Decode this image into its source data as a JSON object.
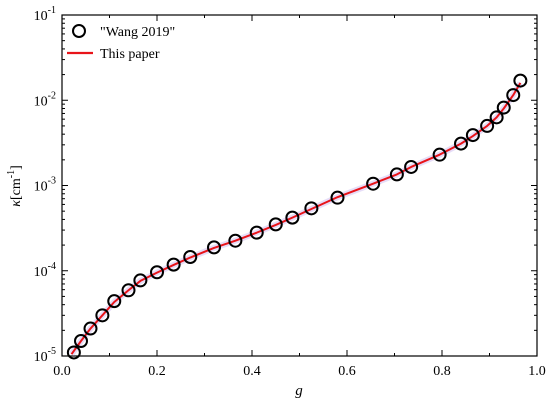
{
  "chart_data": {
    "type": "scatter",
    "xlabel": "g",
    "ylabel": {
      "kappa": "κ",
      "unit_open": "[cm",
      "unit_exp": "-1",
      "unit_close": "]"
    },
    "xlim": [
      0.0,
      1.0
    ],
    "ylim": [
      1e-05,
      0.1
    ],
    "yscale": "log",
    "grid": false,
    "legend_position": "top-left",
    "x_ticks": [
      {
        "value": 0.0,
        "label": "0.0"
      },
      {
        "value": 0.2,
        "label": "0.2"
      },
      {
        "value": 0.4,
        "label": "0.4"
      },
      {
        "value": 0.6,
        "label": "0.6"
      },
      {
        "value": 0.8,
        "label": "0.8"
      },
      {
        "value": 1.0,
        "label": "1.0"
      }
    ],
    "y_ticks": [
      {
        "value": 1e-05,
        "base": "10",
        "exp": "-5"
      },
      {
        "value": 0.0001,
        "base": "10",
        "exp": "-4"
      },
      {
        "value": 0.001,
        "base": "10",
        "exp": "-3"
      },
      {
        "value": 0.01,
        "base": "10",
        "exp": "-2"
      },
      {
        "value": 0.1,
        "base": "10",
        "exp": "-1"
      }
    ],
    "series": [
      {
        "name": "\"Wang 2019\"",
        "kind": "markers",
        "marker": "open-circle",
        "color": "#000000",
        "x": [
          0.025,
          0.04,
          0.06,
          0.085,
          0.11,
          0.14,
          0.165,
          0.2,
          0.235,
          0.27,
          0.32,
          0.365,
          0.41,
          0.45,
          0.485,
          0.525,
          0.58,
          0.655,
          0.705,
          0.735,
          0.795,
          0.84,
          0.865,
          0.895,
          0.915,
          0.93,
          0.95,
          0.965
        ],
        "y": [
          1.1e-05,
          1.5e-05,
          2.1e-05,
          3e-05,
          4.4e-05,
          5.9e-05,
          7.7e-05,
          9.6e-05,
          0.000118,
          0.000145,
          0.000188,
          0.000225,
          0.00028,
          0.00035,
          0.00042,
          0.00054,
          0.00072,
          0.00105,
          0.00135,
          0.00165,
          0.0023,
          0.0031,
          0.0039,
          0.005,
          0.0063,
          0.0082,
          0.0115,
          0.017
        ]
      },
      {
        "name": "This paper",
        "kind": "line",
        "color": "#e8141a",
        "x": [
          0.02,
          0.04,
          0.06,
          0.085,
          0.11,
          0.14,
          0.165,
          0.2,
          0.235,
          0.27,
          0.32,
          0.365,
          0.41,
          0.45,
          0.485,
          0.525,
          0.58,
          0.655,
          0.705,
          0.735,
          0.795,
          0.84,
          0.865,
          0.895,
          0.915,
          0.93,
          0.95,
          0.965
        ],
        "y": [
          1.05e-05,
          1.5e-05,
          2.1e-05,
          3e-05,
          4.3e-05,
          5.9e-05,
          7.6e-05,
          9.5e-05,
          0.000117,
          0.000143,
          0.000185,
          0.000225,
          0.00028,
          0.000345,
          0.00042,
          0.00053,
          0.00073,
          0.00105,
          0.00135,
          0.00165,
          0.0023,
          0.0031,
          0.0038,
          0.005,
          0.0063,
          0.008,
          0.0115,
          0.016
        ]
      }
    ]
  }
}
